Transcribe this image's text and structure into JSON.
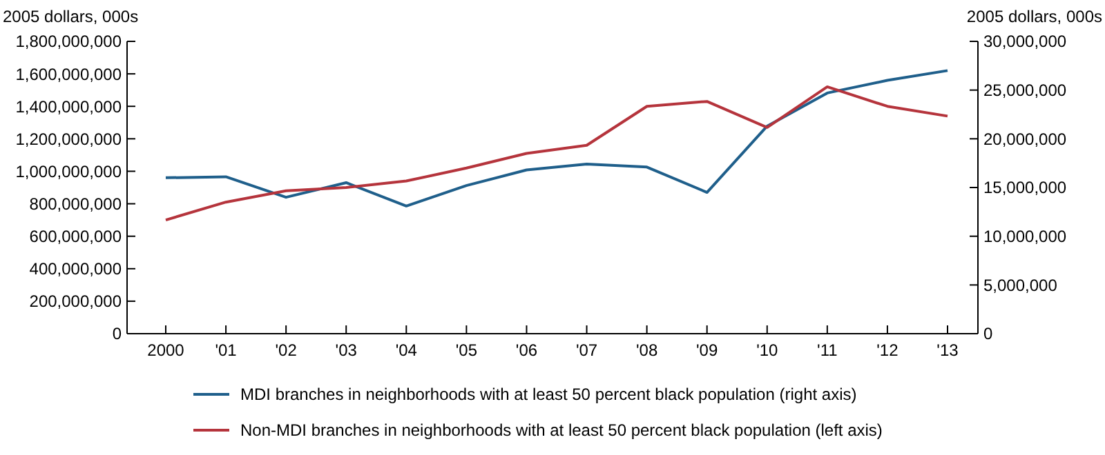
{
  "chart_data": {
    "type": "line",
    "ylabel": "2005 dollars, 000s",
    "y2label": "2005 dollars, 000s",
    "categories": [
      "2000",
      "'01",
      "'02",
      "'03",
      "'04",
      "'05",
      "'06",
      "'07",
      "'08",
      "'09",
      "'10",
      "'11",
      "'12",
      "'13"
    ],
    "series": [
      {
        "name": "MDI branches in neighborhoods with at least 50 percent black population (right axis)",
        "color": "#1f5f8b",
        "axis": "y2",
        "values": [
          16000000,
          16100000,
          14000000,
          15500000,
          13100000,
          15200000,
          16800000,
          17400000,
          17100000,
          14500000,
          21300000,
          24700000,
          26000000,
          27000000
        ]
      },
      {
        "name": "Non-MDI branches in neighborhoods with at least 50 percent black population (left axis)",
        "color": "#b5343c",
        "values": [
          700000000,
          810000000,
          880000000,
          900000000,
          940000000,
          1020000000,
          1110000000,
          1160000000,
          1400000000,
          1430000000,
          1270000000,
          1520000000,
          1400000000,
          1340000000
        ]
      }
    ],
    "ylim": [
      0,
      1800000000
    ],
    "yticks": [
      {
        "value": 0,
        "label": "0"
      },
      {
        "value": 200000000,
        "label": "200,000,000"
      },
      {
        "value": 400000000,
        "label": "400,000,000"
      },
      {
        "value": 600000000,
        "label": "600,000,000"
      },
      {
        "value": 800000000,
        "label": "800,000,000"
      },
      {
        "value": 1000000000,
        "label": "1,000,000,000"
      },
      {
        "value": 1200000000,
        "label": "1,200,000,000"
      },
      {
        "value": 1400000000,
        "label": "1,400,000,000"
      },
      {
        "value": 1600000000,
        "label": "1,600,000,000"
      },
      {
        "value": 1800000000,
        "label": "1,800,000,000"
      }
    ],
    "y2lim": [
      0,
      30000000
    ],
    "y2ticks": [
      {
        "value": 0,
        "label": "0"
      },
      {
        "value": 5000000,
        "label": "5,000,000"
      },
      {
        "value": 10000000,
        "label": "10,000,000"
      },
      {
        "value": 15000000,
        "label": "15,000,000"
      },
      {
        "value": 20000000,
        "label": "20,000,000"
      },
      {
        "value": 25000000,
        "label": "25,000,000"
      },
      {
        "value": 30000000,
        "label": "30,000,000"
      }
    ],
    "grid": false,
    "legend": "bottom",
    "marker": "none",
    "line_style": "solid"
  }
}
